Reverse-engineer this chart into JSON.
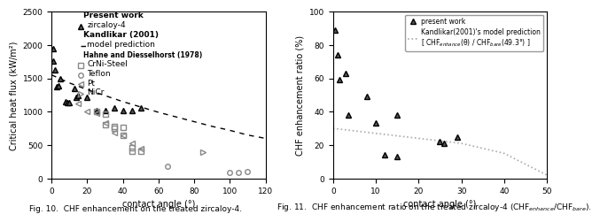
{
  "fig10": {
    "title": "Fig. 10.  CHF enhancement on the treated zircaloy-4.",
    "xlabel": "contact angle (°)",
    "ylabel": "Critical heat flux (kW/m²)",
    "xlim": [
      0,
      120
    ],
    "ylim": [
      0,
      2500
    ],
    "xticks": [
      0,
      20,
      40,
      60,
      80,
      100,
      120
    ],
    "yticks": [
      0,
      500,
      1000,
      1500,
      2000,
      2500
    ],
    "present_work": {
      "x": [
        1,
        1,
        2,
        3,
        4,
        5,
        8,
        9,
        10,
        13,
        14,
        15,
        20,
        25,
        30,
        35,
        40,
        45,
        50
      ],
      "y": [
        1950,
        1760,
        1620,
        1380,
        1390,
        1500,
        1150,
        1130,
        1140,
        1350,
        1220,
        1245,
        1220,
        1020,
        1010,
        1060,
        1020,
        1020,
        1050
      ]
    },
    "kandlikar_curve": {
      "x": [
        0,
        10,
        20,
        30,
        40,
        50,
        60,
        70,
        80,
        90,
        100,
        110,
        120
      ],
      "y": [
        1550,
        1430,
        1330,
        1240,
        1150,
        1070,
        990,
        920,
        850,
        780,
        720,
        650,
        600
      ]
    },
    "CrNi_Steel": {
      "x": [
        25,
        30,
        30,
        35,
        35,
        40,
        40,
        45,
        45,
        50
      ],
      "y": [
        1000,
        970,
        800,
        780,
        750,
        760,
        640,
        460,
        410,
        410
      ]
    },
    "Teflon": {
      "x": [
        65,
        100,
        105,
        110
      ],
      "y": [
        175,
        90,
        90,
        100
      ]
    },
    "Pt": {
      "x": [
        15,
        20,
        25,
        30,
        35,
        40,
        45,
        50
      ],
      "y": [
        1120,
        1000,
        980,
        830,
        680,
        650,
        530,
        440
      ]
    },
    "NiCr": {
      "x": [
        85
      ],
      "y": [
        400
      ]
    }
  },
  "fig11": {
    "title": "Fig. 11.  CHF enhancement ratio on the treated zircaloy-4 (CHF_enhance/CHF_bare).",
    "xlabel": "contact angle (°)",
    "ylabel": "CHF enhancement ratio (%)",
    "xlim": [
      0,
      50
    ],
    "ylim": [
      0,
      100
    ],
    "xticks": [
      0,
      10,
      20,
      30,
      40,
      50
    ],
    "yticks": [
      0,
      20,
      40,
      60,
      80,
      100
    ],
    "present_work": {
      "x": [
        0.5,
        1,
        1.5,
        3,
        3.5,
        8,
        10,
        12,
        15,
        15,
        25,
        26,
        29
      ],
      "y": [
        89,
        74,
        59,
        63,
        38,
        49,
        33,
        14,
        13,
        38,
        22,
        21,
        25
      ]
    },
    "kandlikar_curve": {
      "x": [
        0,
        10,
        20,
        30,
        40,
        50
      ],
      "y": [
        30,
        27,
        24,
        21,
        15,
        2
      ]
    },
    "legend_line1": "present work",
    "legend_line2": "Kandlikar(2001)'s model prediction",
    "legend_line3": "[ CHF_enhance(θ) / CHF_bare(49.3°) ]"
  }
}
